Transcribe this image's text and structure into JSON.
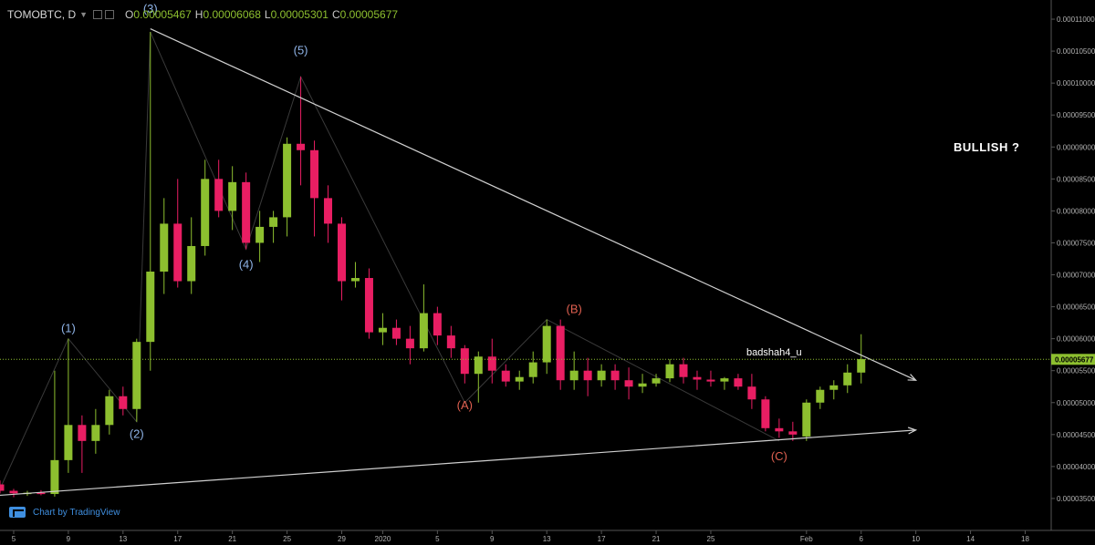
{
  "header": {
    "symbol": "TOMOBTC, D",
    "open_label": "O",
    "open": "0.00005467",
    "high_label": "H",
    "high": "0.00006068",
    "low_label": "L",
    "low": "0.00005301",
    "close_label": "C",
    "close": "0.00005677"
  },
  "annotations": {
    "bullish": "BULLISH ?",
    "author": "badshah4_u"
  },
  "branding": {
    "logo_text": "Chart by TradingView"
  },
  "colors": {
    "up": "#8dbf2f",
    "down": "#e91e63",
    "price_line": "#8dbf2f",
    "trendline": "#d0d0d0",
    "wave_blue": "#8fb4e8",
    "wave_red": "#e06050"
  },
  "icons": {
    "tv_logo": "tradingview-logo-icon",
    "caret": "chevron-down-icon"
  },
  "chart_data": {
    "type": "candlestick",
    "y_scale": "linear",
    "ylim": [
      3e-05,
      0.000113
    ],
    "grid": false,
    "current_price_label": "0.00005677",
    "y_ticks": [
      "0.00011000",
      "0.00010500",
      "0.00010000",
      "0.00009500",
      "0.00009000",
      "0.00008500",
      "0.00008000",
      "0.00007500",
      "0.00007000",
      "0.00006500",
      "0.00006000",
      "0.00005500",
      "0.00005000",
      "0.00004500",
      "0.00004000",
      "0.00003500"
    ],
    "x_ticks": [
      {
        "index": 1,
        "label": "5"
      },
      {
        "index": 5,
        "label": "9"
      },
      {
        "index": 9,
        "label": "13"
      },
      {
        "index": 13,
        "label": "17"
      },
      {
        "index": 17,
        "label": "21"
      },
      {
        "index": 21,
        "label": "25"
      },
      {
        "index": 25,
        "label": "29"
      },
      {
        "index": 28,
        "label": "2020"
      },
      {
        "index": 32,
        "label": "5"
      },
      {
        "index": 36,
        "label": "9"
      },
      {
        "index": 40,
        "label": "13"
      },
      {
        "index": 44,
        "label": "17"
      },
      {
        "index": 48,
        "label": "21"
      },
      {
        "index": 52,
        "label": "25"
      },
      {
        "index": 59,
        "label": "Feb"
      },
      {
        "index": 63,
        "label": "6"
      },
      {
        "index": 67,
        "label": "10"
      },
      {
        "index": 71,
        "label": "14"
      },
      {
        "index": 75,
        "label": "18"
      }
    ],
    "candles": [
      {
        "o": 3.72e-05,
        "h": 3.78e-05,
        "l": 3.58e-05,
        "c": 3.62e-05
      },
      {
        "o": 3.62e-05,
        "h": 3.65e-05,
        "l": 3.52e-05,
        "c": 3.58e-05
      },
      {
        "o": 3.58e-05,
        "h": 3.62e-05,
        "l": 3.54e-05,
        "c": 3.59e-05
      },
      {
        "o": 3.59e-05,
        "h": 3.63e-05,
        "l": 3.55e-05,
        "c": 3.57e-05
      },
      {
        "o": 3.57e-05,
        "h": 5.5e-05,
        "l": 3.53e-05,
        "c": 4.1e-05
      },
      {
        "o": 4.1e-05,
        "h": 6e-05,
        "l": 3.9e-05,
        "c": 4.65e-05
      },
      {
        "o": 4.65e-05,
        "h": 4.8e-05,
        "l": 3.9e-05,
        "c": 4.4e-05
      },
      {
        "o": 4.4e-05,
        "h": 4.9e-05,
        "l": 4.2e-05,
        "c": 4.65e-05
      },
      {
        "o": 4.65e-05,
        "h": 5.2e-05,
        "l": 4.5e-05,
        "c": 5.1e-05
      },
      {
        "o": 5.1e-05,
        "h": 5.25e-05,
        "l": 4.8e-05,
        "c": 4.9e-05
      },
      {
        "o": 4.9e-05,
        "h": 6e-05,
        "l": 4.7e-05,
        "c": 5.95e-05
      },
      {
        "o": 5.95e-05,
        "h": 0.000108,
        "l": 5.5e-05,
        "c": 7.05e-05
      },
      {
        "o": 7.05e-05,
        "h": 8.2e-05,
        "l": 6.7e-05,
        "c": 7.8e-05
      },
      {
        "o": 7.8e-05,
        "h": 8.5e-05,
        "l": 6.8e-05,
        "c": 6.9e-05
      },
      {
        "o": 6.9e-05,
        "h": 7.9e-05,
        "l": 6.7e-05,
        "c": 7.45e-05
      },
      {
        "o": 7.45e-05,
        "h": 8.8e-05,
        "l": 7.3e-05,
        "c": 8.5e-05
      },
      {
        "o": 8.5e-05,
        "h": 8.8e-05,
        "l": 7.9e-05,
        "c": 8e-05
      },
      {
        "o": 8e-05,
        "h": 8.7e-05,
        "l": 7.7e-05,
        "c": 8.45e-05
      },
      {
        "o": 8.45e-05,
        "h": 8.6e-05,
        "l": 7.4e-05,
        "c": 7.5e-05
      },
      {
        "o": 7.5e-05,
        "h": 8e-05,
        "l": 7.2e-05,
        "c": 7.75e-05
      },
      {
        "o": 7.75e-05,
        "h": 8e-05,
        "l": 7.5e-05,
        "c": 7.9e-05
      },
      {
        "o": 7.9e-05,
        "h": 9.15e-05,
        "l": 7.6e-05,
        "c": 9.05e-05
      },
      {
        "o": 9.05e-05,
        "h": 0.000101,
        "l": 8.4e-05,
        "c": 8.95e-05
      },
      {
        "o": 8.95e-05,
        "h": 9.1e-05,
        "l": 7.6e-05,
        "c": 8.2e-05
      },
      {
        "o": 8.2e-05,
        "h": 8.4e-05,
        "l": 7.5e-05,
        "c": 7.8e-05
      },
      {
        "o": 7.8e-05,
        "h": 7.9e-05,
        "l": 6.6e-05,
        "c": 6.9e-05
      },
      {
        "o": 6.9e-05,
        "h": 7.2e-05,
        "l": 6.8e-05,
        "c": 6.95e-05
      },
      {
        "o": 6.95e-05,
        "h": 7.1e-05,
        "l": 6e-05,
        "c": 6.1e-05
      },
      {
        "o": 6.1e-05,
        "h": 6.4e-05,
        "l": 5.9e-05,
        "c": 6.17e-05
      },
      {
        "o": 6.17e-05,
        "h": 6.3e-05,
        "l": 5.9e-05,
        "c": 6e-05
      },
      {
        "o": 6e-05,
        "h": 6.2e-05,
        "l": 5.6e-05,
        "c": 5.85e-05
      },
      {
        "o": 5.85e-05,
        "h": 6.85e-05,
        "l": 5.8e-05,
        "c": 6.4e-05
      },
      {
        "o": 6.4e-05,
        "h": 6.5e-05,
        "l": 5.9e-05,
        "c": 6.05e-05
      },
      {
        "o": 6.05e-05,
        "h": 6.2e-05,
        "l": 5.7e-05,
        "c": 5.85e-05
      },
      {
        "o": 5.85e-05,
        "h": 5.9e-05,
        "l": 5.3e-05,
        "c": 5.45e-05
      },
      {
        "o": 5.45e-05,
        "h": 5.8e-05,
        "l": 5e-05,
        "c": 5.72e-05
      },
      {
        "o": 5.72e-05,
        "h": 6e-05,
        "l": 5.3e-05,
        "c": 5.5e-05
      },
      {
        "o": 5.5e-05,
        "h": 5.6e-05,
        "l": 5.25e-05,
        "c": 5.33e-05
      },
      {
        "o": 5.33e-05,
        "h": 5.5e-05,
        "l": 5.2e-05,
        "c": 5.4e-05
      },
      {
        "o": 5.4e-05,
        "h": 5.8e-05,
        "l": 5.3e-05,
        "c": 5.63e-05
      },
      {
        "o": 5.63e-05,
        "h": 6.3e-05,
        "l": 5.45e-05,
        "c": 6.2e-05
      },
      {
        "o": 6.2e-05,
        "h": 6.3e-05,
        "l": 5.2e-05,
        "c": 5.35e-05
      },
      {
        "o": 5.35e-05,
        "h": 5.8e-05,
        "l": 5.2e-05,
        "c": 5.5e-05
      },
      {
        "o": 5.5e-05,
        "h": 5.7e-05,
        "l": 5.1e-05,
        "c": 5.35e-05
      },
      {
        "o": 5.35e-05,
        "h": 5.6e-05,
        "l": 5.25e-05,
        "c": 5.5e-05
      },
      {
        "o": 5.5e-05,
        "h": 5.6e-05,
        "l": 5.2e-05,
        "c": 5.35e-05
      },
      {
        "o": 5.35e-05,
        "h": 5.55e-05,
        "l": 5.05e-05,
        "c": 5.25e-05
      },
      {
        "o": 5.25e-05,
        "h": 5.45e-05,
        "l": 5.15e-05,
        "c": 5.3e-05
      },
      {
        "o": 5.3e-05,
        "h": 5.45e-05,
        "l": 5.25e-05,
        "c": 5.38e-05
      },
      {
        "o": 5.38e-05,
        "h": 5.68e-05,
        "l": 5.32e-05,
        "c": 5.6e-05
      },
      {
        "o": 5.6e-05,
        "h": 5.7e-05,
        "l": 5.3e-05,
        "c": 5.4e-05
      },
      {
        "o": 5.4e-05,
        "h": 5.5e-05,
        "l": 5.2e-05,
        "c": 5.36e-05
      },
      {
        "o": 5.36e-05,
        "h": 5.5e-05,
        "l": 5.25e-05,
        "c": 5.33e-05
      },
      {
        "o": 5.33e-05,
        "h": 5.4e-05,
        "l": 5.2e-05,
        "c": 5.38e-05
      },
      {
        "o": 5.38e-05,
        "h": 5.45e-05,
        "l": 5.2e-05,
        "c": 5.25e-05
      },
      {
        "o": 5.25e-05,
        "h": 5.45e-05,
        "l": 4.9e-05,
        "c": 5.05e-05
      },
      {
        "o": 5.05e-05,
        "h": 5.1e-05,
        "l": 4.55e-05,
        "c": 4.6e-05
      },
      {
        "o": 4.6e-05,
        "h": 4.75e-05,
        "l": 4.45e-05,
        "c": 4.55e-05
      },
      {
        "o": 4.55e-05,
        "h": 4.7e-05,
        "l": 4.4e-05,
        "c": 4.5e-05
      },
      {
        "o": 4.47e-05,
        "h": 5.05e-05,
        "l": 4.4e-05,
        "c": 5e-05
      },
      {
        "o": 5e-05,
        "h": 5.25e-05,
        "l": 4.9e-05,
        "c": 5.2e-05
      },
      {
        "o": 5.2e-05,
        "h": 5.35e-05,
        "l": 5.05e-05,
        "c": 5.27e-05
      },
      {
        "o": 5.27e-05,
        "h": 5.6e-05,
        "l": 5.15e-05,
        "c": 5.47e-05
      },
      {
        "o": 5.47e-05,
        "h": 6.07e-05,
        "l": 5.3e-05,
        "c": 5.68e-05
      }
    ],
    "wave_labels": [
      {
        "text": "(1)",
        "index": 5,
        "price": 6.1e-05,
        "color": "blue"
      },
      {
        "text": "(2)",
        "index": 10,
        "price": 4.45e-05,
        "color": "blue"
      },
      {
        "text": "(3)",
        "index": 11,
        "price": 0.000111,
        "color": "blue"
      },
      {
        "text": "(4)",
        "index": 18,
        "price": 7.1e-05,
        "color": "blue"
      },
      {
        "text": "(5)",
        "index": 22,
        "price": 0.0001045,
        "color": "blue"
      },
      {
        "text": "(A)",
        "index": 34,
        "price": 4.9e-05,
        "color": "red"
      },
      {
        "text": "(B)",
        "index": 42,
        "price": 6.4e-05,
        "color": "red"
      },
      {
        "text": "(C)",
        "index": 57,
        "price": 4.1e-05,
        "color": "red"
      }
    ],
    "wave_path": [
      {
        "index": 0,
        "price": 3.65e-05
      },
      {
        "index": 5,
        "price": 6e-05
      },
      {
        "index": 10,
        "price": 4.7e-05
      },
      {
        "index": 11,
        "price": 0.000108
      },
      {
        "index": 18,
        "price": 7.4e-05
      },
      {
        "index": 22,
        "price": 0.000101
      },
      {
        "index": 34,
        "price": 5e-05
      },
      {
        "index": 40,
        "price": 6.3e-05
      },
      {
        "index": 57,
        "price": 4.4e-05
      }
    ],
    "trendlines": [
      {
        "from": {
          "index": 11,
          "price": 0.0001085
        },
        "to": {
          "index": 67,
          "price": 5.35e-05
        }
      },
      {
        "from": {
          "index": 0,
          "price": 3.55e-05
        },
        "to": {
          "index": 67,
          "price": 4.57e-05
        }
      }
    ]
  }
}
